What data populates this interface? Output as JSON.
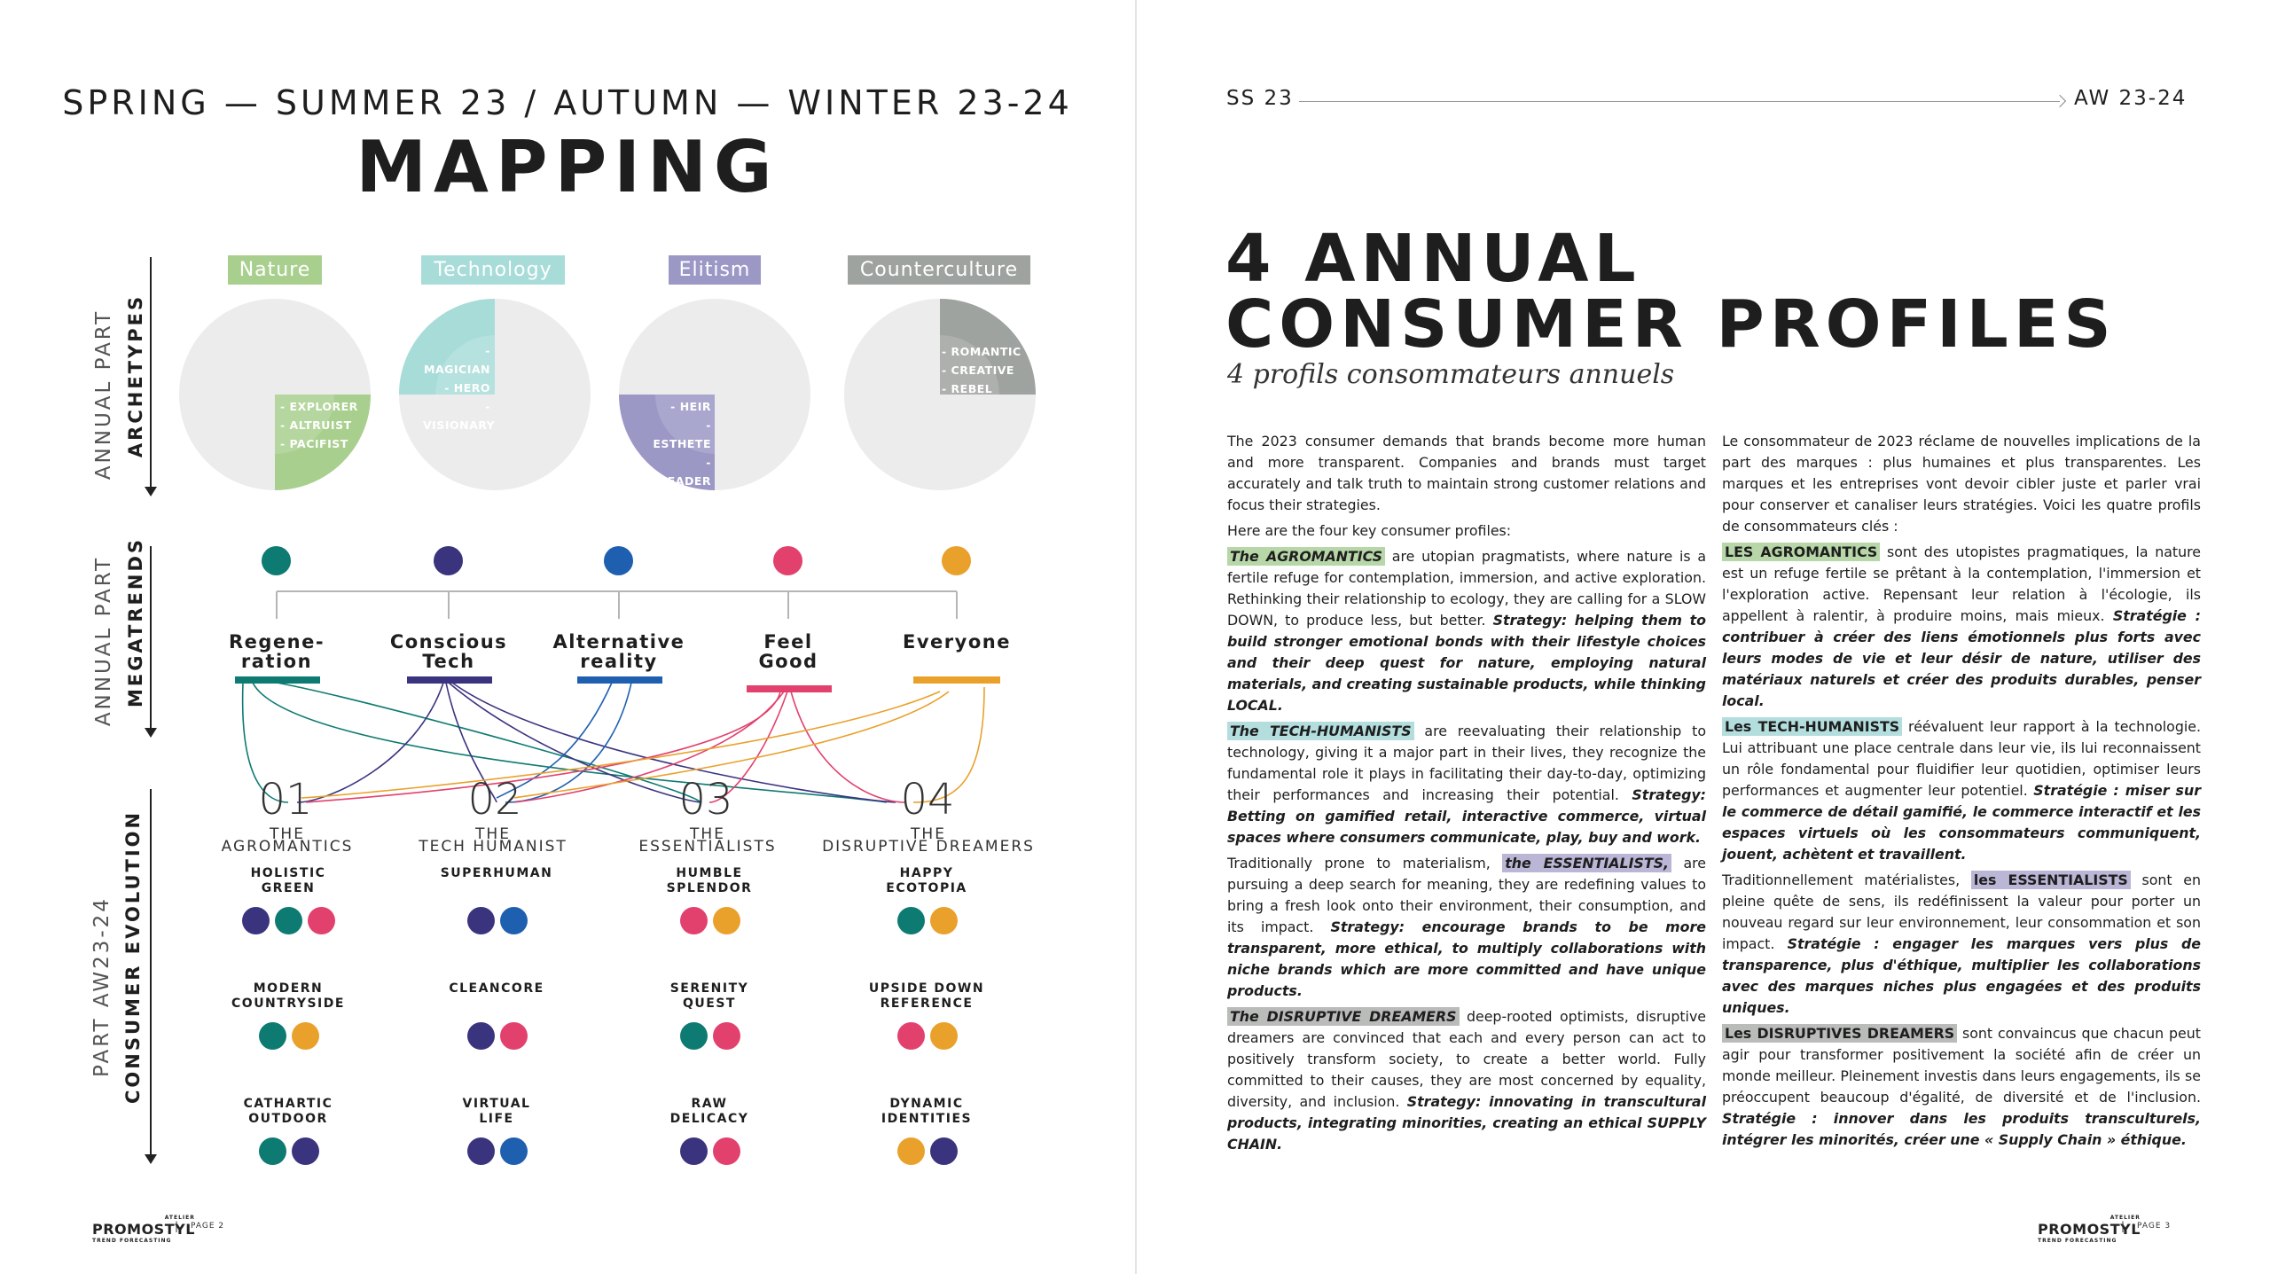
{
  "left": {
    "season": "SPRING — SUMMER 23 / AUTUMN — WINTER 23-24",
    "title": "MAPPING",
    "sections": {
      "archetypes": {
        "thin": "ANNUAL PART",
        "bold": "ARCHETYPES"
      },
      "megatrends": {
        "thin": "ANNUAL PART",
        "bold": "MEGATRENDS"
      },
      "evolution": {
        "thin": "PART AW23-24",
        "bold": "CONSUMER EVOLUTION"
      }
    },
    "archetypes": [
      {
        "label": "Nature",
        "color": "#a9cf8e",
        "fraction": 0.25,
        "items": [
          "- EXPLORER",
          "- ALTRUIST",
          "- PACIFIST"
        ]
      },
      {
        "label": "Technology",
        "color": "#a8dcd9",
        "fraction": 0.25,
        "items": [
          "- MAGICIAN",
          "- HERO",
          "- VISIONARY"
        ]
      },
      {
        "label": "Elitism",
        "color": "#9b98c6",
        "fraction": 0.25,
        "items": [
          "- HEIR",
          "- ESTHETE",
          "- LEADER"
        ]
      },
      {
        "label": "Counterculture",
        "color": "#9fa39f",
        "fraction": 0.25,
        "items": [
          "- ROMANTIC",
          "- CREATIVE",
          "- REBEL"
        ]
      }
    ],
    "megatrends": [
      {
        "line1": "Regene-",
        "line2": "ration",
        "color": "#0e7b72"
      },
      {
        "line1": "Conscious",
        "line2": "Tech",
        "color": "#3a347f"
      },
      {
        "line1": "Alternative",
        "line2": "reality",
        "color": "#1f5fb0"
      },
      {
        "line1": "Feel",
        "line2": "Good",
        "color": "#e2416d"
      },
      {
        "line1": "Everyone",
        "line2": "",
        "color": "#e9a12c"
      }
    ],
    "evolution": [
      {
        "num": "01",
        "the": "THE",
        "name": "AGROMANTICS",
        "subs": [
          {
            "line1": "HOLISTIC",
            "line2": "GREEN",
            "dots": [
              "#3a347f",
              "#0e7b72",
              "#e2416d"
            ]
          },
          {
            "line1": "MODERN",
            "line2": "COUNTRYSIDE",
            "dots": [
              "#0e7b72",
              "#e9a12c"
            ]
          },
          {
            "line1": "CATHARTIC",
            "line2": "OUTDOOR",
            "dots": [
              "#0e7b72",
              "#3a347f"
            ]
          }
        ]
      },
      {
        "num": "02",
        "the": "THE",
        "name": "TECH HUMANIST",
        "subs": [
          {
            "line1": "SUPERHUMAN",
            "line2": "",
            "dots": [
              "#3a347f",
              "#1f5fb0"
            ]
          },
          {
            "line1": "CLEANCORE",
            "line2": "",
            "dots": [
              "#3a347f",
              "#e2416d"
            ]
          },
          {
            "line1": "VIRTUAL",
            "line2": "LIFE",
            "dots": [
              "#3a347f",
              "#1f5fb0"
            ]
          }
        ]
      },
      {
        "num": "03",
        "the": "THE",
        "name": "ESSENTIALISTS",
        "subs": [
          {
            "line1": "HUMBLE",
            "line2": "SPLENDOR",
            "dots": [
              "#e2416d",
              "#e9a12c"
            ]
          },
          {
            "line1": "SERENITY",
            "line2": "QUEST",
            "dots": [
              "#0e7b72",
              "#e2416d"
            ]
          },
          {
            "line1": "RAW",
            "line2": "DELICACY",
            "dots": [
              "#3a347f",
              "#e2416d"
            ]
          }
        ]
      },
      {
        "num": "04",
        "the": "THE",
        "name": "DISRUPTIVE DREAMERS",
        "subs": [
          {
            "line1": "HAPPY",
            "line2": "ECOTOPIA",
            "dots": [
              "#0e7b72",
              "#e9a12c"
            ]
          },
          {
            "line1": "UPSIDE DOWN",
            "line2": "REFERENCE",
            "dots": [
              "#e2416d",
              "#e9a12c"
            ]
          },
          {
            "line1": "DYNAMIC",
            "line2": "IDENTITIES",
            "dots": [
              "#e9a12c",
              "#3a347f"
            ]
          }
        ]
      }
    ],
    "footer": {
      "logo_small": "ATELIER",
      "logo": "PROMOSTYL",
      "logo_sub": "TREND FORECASTING",
      "sep": "|",
      "page": "PAGE 2"
    }
  },
  "right": {
    "season_start": "SS 23",
    "season_end": "AW 23-24",
    "title_line1": "4 ANNUAL",
    "title_line2": "CONSUMER PROFILES",
    "subtitle": "4 profils consommateurs annuels",
    "en": {
      "intro": "The 2023 consumer demands that brands become more human and more transparent. Companies and brands must target accurately and talk truth to maintain strong customer relations and focus their strategies.",
      "intro2": "Here are the four key consumer profiles:",
      "p1_hl": "The AGROMANTICS",
      "p1_text": " are utopian pragmatists, where nature is a fertile refuge for contemplation, immersion, and active exploration. Rethinking their relationship to ecology, they are calling for a SLOW DOWN, to produce less, but better. ",
      "p1_strat": "Strategy: helping them to build stronger emotional bonds with their lifestyle choices and their deep quest for nature, employing natural materials, and creating sustainable products, while thinking LOCAL.",
      "p2_hl": "The TECH-HUMANISTS",
      "p2_text": " are reevaluating their relationship to technology, giving it a major part in their lives, they recognize the fundamental role it plays in facilitating their day-to-day, optimizing their performances and increasing their potential. ",
      "p2_strat": "Strategy: Betting on gamified retail, interactive commerce, virtual spaces where consumers communicate, play, buy and work.",
      "p3_pre": "Traditionally prone to materialism, ",
      "p3_hl": "the ESSENTIALISTS,",
      "p3_text": " are pursuing a deep search for meaning, they are redefining values to bring a fresh look onto their environment, their consumption, and its impact. ",
      "p3_strat": "Strategy: encourage brands to be more transparent, more ethical, to multiply collaborations with niche brands which are more committed and have unique products.",
      "p4_hl": "The DISRUPTIVE DREAMERS",
      "p4_text": " deep-rooted optimists, disruptive dreamers are convinced that each and every person can act to positively transform society, to create a better world. Fully committed to their causes, they are most concerned by equality, diversity, and inclusion. ",
      "p4_strat": "Strategy: innovating in transcultural products, integrating minorities, creating an ethical SUPPLY CHAIN."
    },
    "fr": {
      "intro": "Le consommateur de 2023 réclame de nouvelles implications de la part des marques : plus humaines et plus transparentes. Les marques et les entreprises vont devoir cibler juste et parler vrai pour conserver et canaliser leurs stratégies. Voici les quatre profils de consommateurs clés :",
      "p1_hl": "LES AGROMANTICS",
      "p1_text": " sont des utopistes pragmatiques, la nature est un refuge fertile se prêtant à la contemplation, l'immersion et l'exploration active. Repensant leur relation à l'écologie, ils appellent à ralentir, à produire moins, mais mieux. ",
      "p1_strat": "Stratégie : contribuer à créer des liens émotionnels plus forts avec leurs modes de vie et leur désir de nature, utiliser des matériaux naturels et créer des produits durables, penser local.",
      "p2_hl": "Les TECH-HUMANISTS",
      "p2_text": " réévaluent leur rapport à la technologie. Lui attribuant une place centrale dans leur vie, ils lui reconnaissent un rôle fondamental pour fluidifier leur quotidien, optimiser leurs performances et augmenter leur potentiel. ",
      "p2_strat": "Stratégie : miser sur le commerce de détail gamifié, le commerce interactif et les espaces virtuels où les consommateurs communiquent, jouent, achètent et travaillent.",
      "p3_pre": "Traditionnellement matérialistes, ",
      "p3_hl": "les ESSENTIALISTS",
      "p3_text": " sont en pleine quête de sens, ils redéfinissent la valeur pour porter un nouveau regard sur leur environnement, leur consommation et son impact. ",
      "p3_strat": "Stratégie : engager les marques vers plus de transparence, plus d'éthique, multiplier les collaborations avec des marques niches plus engagées et des produits uniques.",
      "p4_hl": "Les DISRUPTIVES DREAMERS",
      "p4_text": " sont convaincus que chacun peut agir pour transformer positivement la société afin de créer un monde meilleur. Pleinement investis dans leurs engagements, ils se préoccupent beaucoup d'égalité, de diversité et de l'inclusion. ",
      "p4_strat": "Stratégie : innover dans les produits transculturels, intégrer les minorités, créer une « Supply Chain » éthique."
    },
    "footer": {
      "logo_small": "ATELIER",
      "logo": "PROMOSTYL",
      "logo_sub": "TREND FORECASTING",
      "sep": "|",
      "page": "PAGE 3"
    }
  }
}
